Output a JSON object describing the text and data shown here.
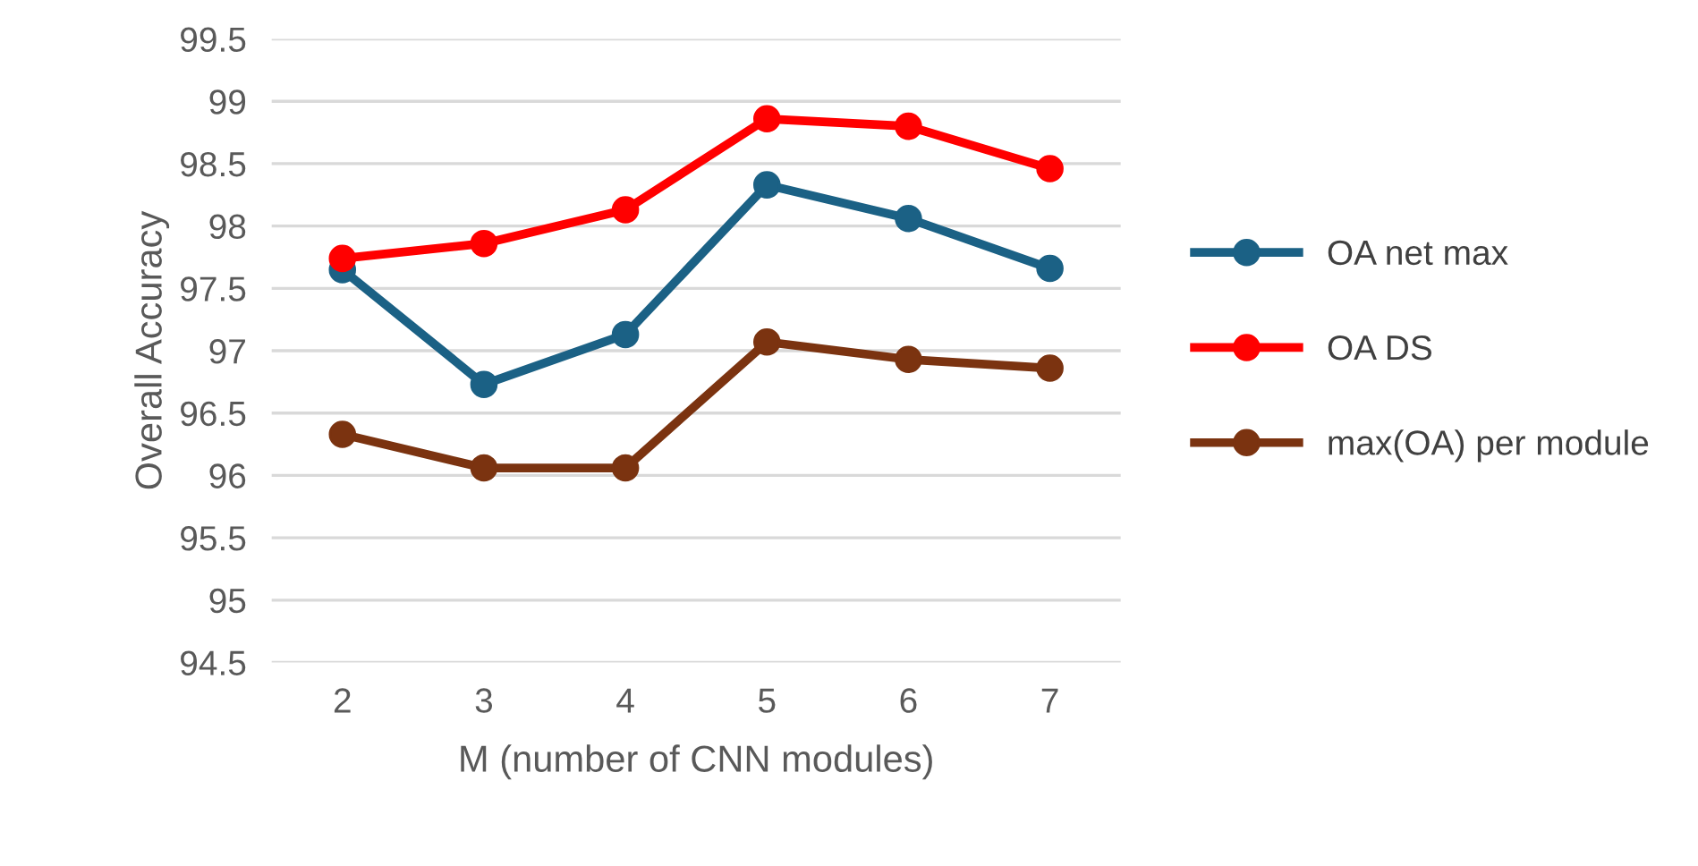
{
  "chart_data": {
    "type": "line",
    "xlabel": "M (number of CNN modules)",
    "ylabel": "Overall Accuracy",
    "categories": [
      "2",
      "3",
      "4",
      "5",
      "6",
      "7"
    ],
    "series": [
      {
        "name": "OA net max",
        "color": "#1b6185",
        "values": [
          97.65,
          96.73,
          97.13,
          98.33,
          98.06,
          97.66
        ]
      },
      {
        "name": "OA DS",
        "color": "#ff0000",
        "values": [
          97.74,
          97.86,
          98.13,
          98.86,
          98.8,
          98.46
        ]
      },
      {
        "name": "max(OA) per module",
        "color": "#7b3310",
        "values": [
          96.33,
          96.06,
          96.06,
          97.07,
          96.93,
          96.86
        ]
      }
    ],
    "ylim": [
      94.5,
      99.5
    ],
    "yticks": [
      94.5,
      95,
      95.5,
      96,
      96.5,
      97,
      97.5,
      98,
      98.5,
      99,
      99.5
    ],
    "grid": "y",
    "legend": "right",
    "marker": "circle",
    "line_style": "solid"
  }
}
